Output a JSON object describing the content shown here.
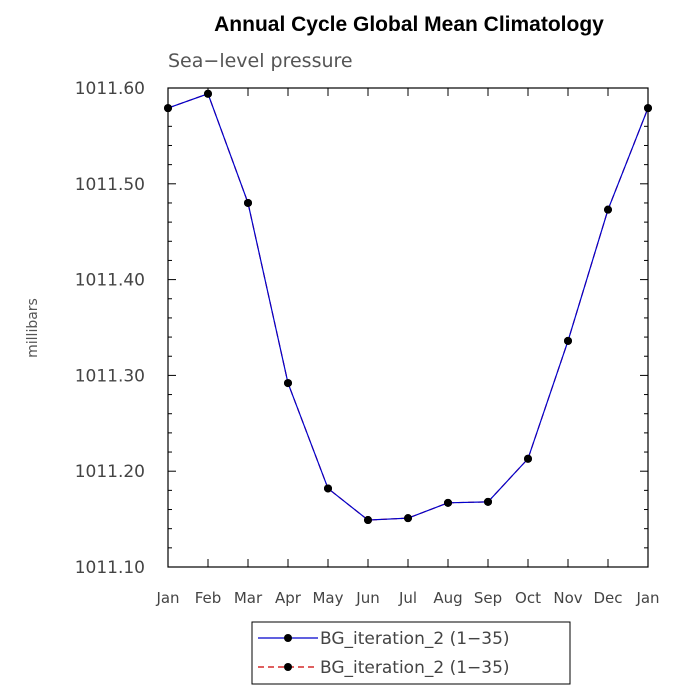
{
  "chart_data": {
    "type": "line",
    "title": "Annual Cycle Global Mean Climatology",
    "subtitle": "Sea−level pressure",
    "ylabel": "millibars",
    "xlabel": "",
    "categories": [
      "Jan",
      "Feb",
      "Mar",
      "Apr",
      "May",
      "Jun",
      "Jul",
      "Aug",
      "Sep",
      "Oct",
      "Nov",
      "Dec",
      "Jan"
    ],
    "ylim": [
      1011.1,
      1011.6
    ],
    "yticks": [
      "1011.10",
      "1011.20",
      "1011.30",
      "1011.40",
      "1011.50",
      "1011.60"
    ],
    "series": [
      {
        "name": "BG_iteration_2 (1−35)",
        "color": "#0000cc",
        "style": "solid",
        "marker": "filled-circle",
        "values": [
          1011.579,
          1011.594,
          1011.48,
          1011.292,
          1011.182,
          1011.149,
          1011.151,
          1011.167,
          1011.168,
          1011.213,
          1011.336,
          1011.473,
          1011.579
        ]
      },
      {
        "name": "BG_iteration_2 (1−35)",
        "color": "#cc0000",
        "style": "dashed",
        "marker": "filled-circle",
        "values": [
          1011.579,
          1011.594,
          1011.48,
          1011.292,
          1011.182,
          1011.149,
          1011.151,
          1011.167,
          1011.168,
          1011.213,
          1011.336,
          1011.473,
          1011.579
        ]
      }
    ],
    "grid": false,
    "legend_position": "bottom"
  }
}
